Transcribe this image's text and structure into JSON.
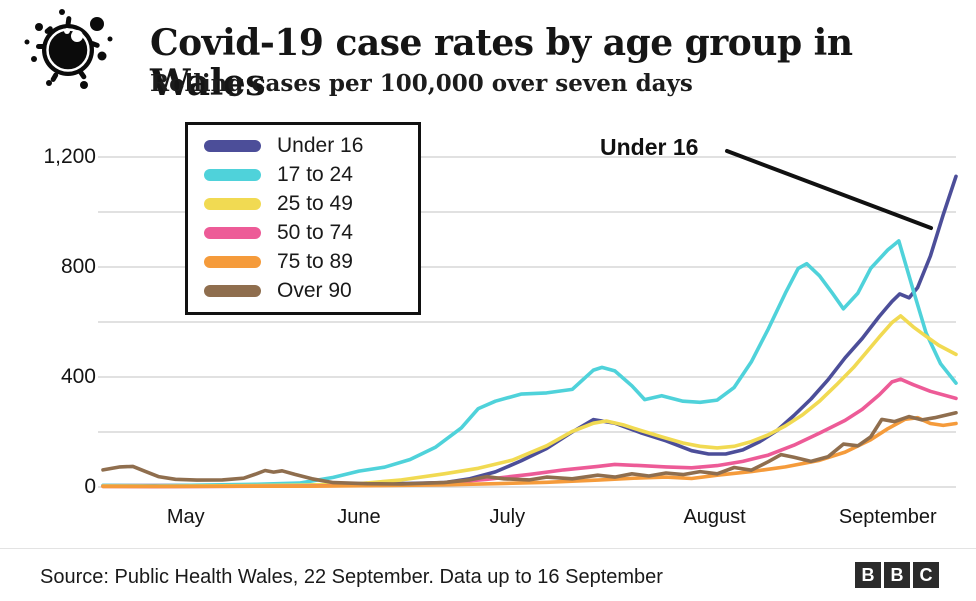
{
  "header": {
    "title": "Covid-19 case rates by age group in Wales",
    "subtitle": "Rolling cases per 100,000 over seven days"
  },
  "annotation": {
    "label": "Under 16"
  },
  "footer": {
    "source": "Source: Public Health Wales, 22 September. Data up to 16 September",
    "logo_letters": [
      "B",
      "B",
      "C"
    ]
  },
  "chart_data": {
    "type": "line",
    "title": "Covid-19 case rates by age group in Wales",
    "subtitle": "Rolling cases per 100,000 over seven days",
    "xlabel": "",
    "ylabel": "",
    "ylim": [
      0,
      1200
    ],
    "grid": "horizontal",
    "gridline_step": 200,
    "legend_position": "top-left",
    "y_ticks": [
      {
        "value": 0,
        "label": "0"
      },
      {
        "value": 400,
        "label": "400"
      },
      {
        "value": 800,
        "label": "800"
      },
      {
        "value": 1200,
        "label": "1,200"
      }
    ],
    "x_ticks": [
      {
        "label": "May",
        "t": 0.097
      },
      {
        "label": "June",
        "t": 0.3
      },
      {
        "label": "July",
        "t": 0.474
      },
      {
        "label": "August",
        "t": 0.717
      },
      {
        "label": "September",
        "t": 0.92
      }
    ],
    "x_domain_note": "timeline fraction 0-1 covers late April to 16 September",
    "series": [
      {
        "name": "Under 16",
        "color": "#4c4e99",
        "points": [
          [
            0,
            5
          ],
          [
            0.06,
            5
          ],
          [
            0.12,
            6
          ],
          [
            0.18,
            5
          ],
          [
            0.24,
            7
          ],
          [
            0.3,
            10
          ],
          [
            0.36,
            13
          ],
          [
            0.4,
            16
          ],
          [
            0.43,
            30
          ],
          [
            0.46,
            55
          ],
          [
            0.49,
            95
          ],
          [
            0.52,
            140
          ],
          [
            0.55,
            200
          ],
          [
            0.575,
            245
          ],
          [
            0.6,
            232
          ],
          [
            0.63,
            198
          ],
          [
            0.66,
            168
          ],
          [
            0.69,
            132
          ],
          [
            0.71,
            120
          ],
          [
            0.73,
            120
          ],
          [
            0.75,
            135
          ],
          [
            0.77,
            165
          ],
          [
            0.79,
            205
          ],
          [
            0.81,
            260
          ],
          [
            0.83,
            320
          ],
          [
            0.85,
            390
          ],
          [
            0.87,
            470
          ],
          [
            0.89,
            540
          ],
          [
            0.91,
            620
          ],
          [
            0.925,
            675
          ],
          [
            0.934,
            702
          ],
          [
            0.945,
            688
          ],
          [
            0.955,
            725
          ],
          [
            0.97,
            840
          ],
          [
            0.985,
            990
          ],
          [
            1,
            1130
          ]
        ]
      },
      {
        "name": "17 to 24",
        "color": "#4fd2da",
        "points": [
          [
            0,
            6
          ],
          [
            0.06,
            4
          ],
          [
            0.12,
            7
          ],
          [
            0.18,
            10
          ],
          [
            0.23,
            14
          ],
          [
            0.27,
            35
          ],
          [
            0.3,
            58
          ],
          [
            0.33,
            72
          ],
          [
            0.36,
            100
          ],
          [
            0.39,
            145
          ],
          [
            0.42,
            215
          ],
          [
            0.44,
            285
          ],
          [
            0.46,
            312
          ],
          [
            0.49,
            338
          ],
          [
            0.52,
            342
          ],
          [
            0.55,
            355
          ],
          [
            0.575,
            425
          ],
          [
            0.585,
            435
          ],
          [
            0.6,
            422
          ],
          [
            0.62,
            368
          ],
          [
            0.635,
            318
          ],
          [
            0.655,
            332
          ],
          [
            0.68,
            312
          ],
          [
            0.7,
            308
          ],
          [
            0.72,
            316
          ],
          [
            0.74,
            362
          ],
          [
            0.76,
            455
          ],
          [
            0.78,
            575
          ],
          [
            0.8,
            705
          ],
          [
            0.815,
            795
          ],
          [
            0.825,
            812
          ],
          [
            0.84,
            768
          ],
          [
            0.855,
            705
          ],
          [
            0.868,
            648
          ],
          [
            0.885,
            705
          ],
          [
            0.9,
            795
          ],
          [
            0.92,
            862
          ],
          [
            0.933,
            895
          ],
          [
            0.95,
            715
          ],
          [
            0.965,
            560
          ],
          [
            0.982,
            448
          ],
          [
            1,
            378
          ]
        ]
      },
      {
        "name": "25 to 49",
        "color": "#f1da52",
        "points": [
          [
            0,
            4
          ],
          [
            0.06,
            3
          ],
          [
            0.12,
            4
          ],
          [
            0.18,
            5
          ],
          [
            0.24,
            7
          ],
          [
            0.3,
            12
          ],
          [
            0.35,
            26
          ],
          [
            0.4,
            48
          ],
          [
            0.44,
            68
          ],
          [
            0.48,
            98
          ],
          [
            0.52,
            150
          ],
          [
            0.55,
            202
          ],
          [
            0.575,
            232
          ],
          [
            0.59,
            240
          ],
          [
            0.61,
            226
          ],
          [
            0.63,
            206
          ],
          [
            0.655,
            182
          ],
          [
            0.68,
            160
          ],
          [
            0.7,
            148
          ],
          [
            0.72,
            142
          ],
          [
            0.74,
            148
          ],
          [
            0.76,
            165
          ],
          [
            0.78,
            190
          ],
          [
            0.8,
            222
          ],
          [
            0.82,
            262
          ],
          [
            0.84,
            312
          ],
          [
            0.86,
            372
          ],
          [
            0.88,
            435
          ],
          [
            0.895,
            490
          ],
          [
            0.91,
            545
          ],
          [
            0.925,
            598
          ],
          [
            0.935,
            622
          ],
          [
            0.95,
            582
          ],
          [
            0.965,
            548
          ],
          [
            0.98,
            515
          ],
          [
            1,
            482
          ]
        ]
      },
      {
        "name": "50 to 74",
        "color": "#ed5b97",
        "points": [
          [
            0,
            2
          ],
          [
            0.06,
            1
          ],
          [
            0.12,
            2
          ],
          [
            0.18,
            3
          ],
          [
            0.24,
            4
          ],
          [
            0.3,
            5
          ],
          [
            0.36,
            9
          ],
          [
            0.4,
            15
          ],
          [
            0.45,
            28
          ],
          [
            0.5,
            46
          ],
          [
            0.54,
            62
          ],
          [
            0.58,
            75
          ],
          [
            0.6,
            82
          ],
          [
            0.63,
            78
          ],
          [
            0.66,
            73
          ],
          [
            0.69,
            70
          ],
          [
            0.72,
            78
          ],
          [
            0.75,
            93
          ],
          [
            0.78,
            116
          ],
          [
            0.81,
            152
          ],
          [
            0.84,
            196
          ],
          [
            0.87,
            242
          ],
          [
            0.89,
            282
          ],
          [
            0.91,
            335
          ],
          [
            0.925,
            382
          ],
          [
            0.935,
            392
          ],
          [
            0.95,
            372
          ],
          [
            0.97,
            348
          ],
          [
            1,
            322
          ]
        ]
      },
      {
        "name": "75 to 89",
        "color": "#f59b3b",
        "points": [
          [
            0,
            2
          ],
          [
            0.08,
            2
          ],
          [
            0.16,
            3
          ],
          [
            0.24,
            3
          ],
          [
            0.32,
            5
          ],
          [
            0.4,
            8
          ],
          [
            0.46,
            12
          ],
          [
            0.52,
            17
          ],
          [
            0.58,
            25
          ],
          [
            0.63,
            33
          ],
          [
            0.66,
            36
          ],
          [
            0.69,
            31
          ],
          [
            0.72,
            43
          ],
          [
            0.76,
            56
          ],
          [
            0.8,
            73
          ],
          [
            0.84,
            97
          ],
          [
            0.87,
            127
          ],
          [
            0.9,
            172
          ],
          [
            0.92,
            212
          ],
          [
            0.94,
            246
          ],
          [
            0.955,
            252
          ],
          [
            0.97,
            231
          ],
          [
            0.985,
            224
          ],
          [
            1,
            231
          ]
        ]
      },
      {
        "name": "Over 90",
        "color": "#8f6e4e",
        "points": [
          [
            0,
            62
          ],
          [
            0.02,
            73
          ],
          [
            0.035,
            75
          ],
          [
            0.05,
            56
          ],
          [
            0.065,
            38
          ],
          [
            0.085,
            28
          ],
          [
            0.11,
            25
          ],
          [
            0.14,
            26
          ],
          [
            0.165,
            32
          ],
          [
            0.18,
            48
          ],
          [
            0.19,
            60
          ],
          [
            0.2,
            54
          ],
          [
            0.21,
            59
          ],
          [
            0.225,
            46
          ],
          [
            0.245,
            30
          ],
          [
            0.27,
            16
          ],
          [
            0.31,
            12
          ],
          [
            0.35,
            11
          ],
          [
            0.4,
            16
          ],
          [
            0.43,
            26
          ],
          [
            0.45,
            38
          ],
          [
            0.47,
            30
          ],
          [
            0.5,
            26
          ],
          [
            0.52,
            36
          ],
          [
            0.55,
            30
          ],
          [
            0.58,
            43
          ],
          [
            0.6,
            36
          ],
          [
            0.62,
            48
          ],
          [
            0.64,
            40
          ],
          [
            0.66,
            51
          ],
          [
            0.68,
            45
          ],
          [
            0.7,
            56
          ],
          [
            0.72,
            48
          ],
          [
            0.74,
            71
          ],
          [
            0.76,
            61
          ],
          [
            0.78,
            92
          ],
          [
            0.795,
            118
          ],
          [
            0.81,
            108
          ],
          [
            0.83,
            93
          ],
          [
            0.85,
            110
          ],
          [
            0.868,
            156
          ],
          [
            0.885,
            150
          ],
          [
            0.9,
            182
          ],
          [
            0.913,
            246
          ],
          [
            0.928,
            238
          ],
          [
            0.945,
            256
          ],
          [
            0.96,
            244
          ],
          [
            0.975,
            252
          ],
          [
            1,
            270
          ]
        ]
      }
    ],
    "annotations": [
      {
        "text": "Under 16",
        "points_to_series": "Under 16"
      }
    ]
  },
  "colors": {
    "grid": "#cfcfcf",
    "annotation_line": "#111111",
    "text": "#141414"
  }
}
